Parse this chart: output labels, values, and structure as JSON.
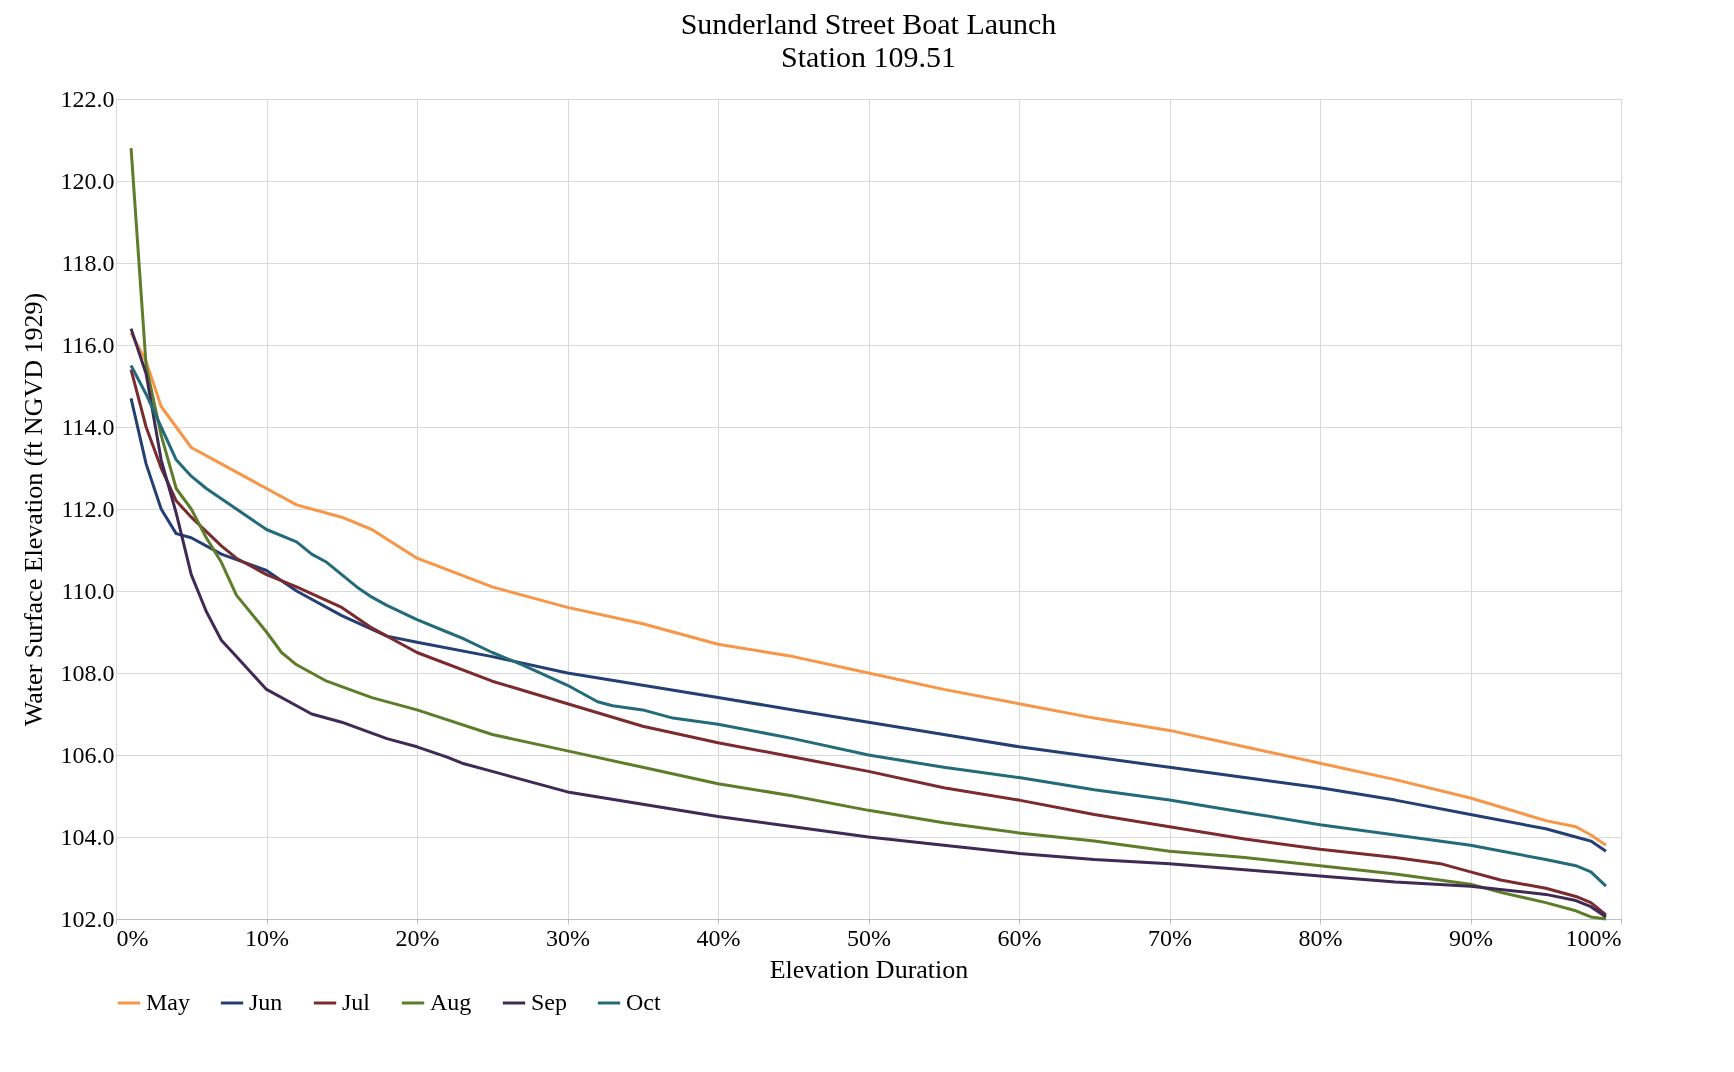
{
  "chart_data": {
    "type": "line",
    "title": "Sunderland Street Boat Launch",
    "subtitle": "Station 109.51",
    "xlabel": "Elevation Duration",
    "ylabel": "Water Surface Elevation (ft NGVD 1929)",
    "xlim": [
      0,
      100
    ],
    "xticks": [
      {
        "value": 0,
        "label": "0%"
      },
      {
        "value": 10,
        "label": "10%"
      },
      {
        "value": 20,
        "label": "20%"
      },
      {
        "value": 30,
        "label": "30%"
      },
      {
        "value": 40,
        "label": "40%"
      },
      {
        "value": 50,
        "label": "50%"
      },
      {
        "value": 60,
        "label": "60%"
      },
      {
        "value": 70,
        "label": "70%"
      },
      {
        "value": 80,
        "label": "80%"
      },
      {
        "value": 90,
        "label": "90%"
      },
      {
        "value": 100,
        "label": "100%"
      }
    ],
    "ylim": [
      102,
      122
    ],
    "yticks": [
      {
        "value": 102,
        "label": "102.0"
      },
      {
        "value": 104,
        "label": "104.0"
      },
      {
        "value": 106,
        "label": "106.0"
      },
      {
        "value": 108,
        "label": "108.0"
      },
      {
        "value": 110,
        "label": "110.0"
      },
      {
        "value": 112,
        "label": "112.0"
      },
      {
        "value": 114,
        "label": "114.0"
      },
      {
        "value": 116,
        "label": "116.0"
      },
      {
        "value": 118,
        "label": "118.0"
      },
      {
        "value": 120,
        "label": "120.0"
      },
      {
        "value": 122,
        "label": "122.0"
      }
    ],
    "grid": true,
    "legend": "bottom",
    "line_style": "solid",
    "marker": "none",
    "series": [
      {
        "name": "May",
        "color": "#f79646",
        "x": [
          1,
          2,
          3,
          4,
          5,
          7,
          10,
          12,
          15,
          17,
          20,
          25,
          30,
          35,
          40,
          45,
          50,
          55,
          60,
          65,
          70,
          75,
          80,
          85,
          90,
          95,
          97,
          98,
          99
        ],
        "values": [
          116.3,
          115.6,
          114.5,
          114.0,
          113.5,
          113.1,
          112.5,
          112.1,
          111.8,
          111.5,
          110.8,
          110.1,
          109.6,
          109.2,
          108.7,
          108.4,
          108.0,
          107.6,
          107.25,
          106.9,
          106.6,
          106.2,
          105.8,
          105.4,
          104.95,
          104.4,
          104.25,
          104.05,
          103.8
        ]
      },
      {
        "name": "Jun",
        "color": "#243f73",
        "x": [
          1,
          2,
          3,
          4,
          5,
          7,
          10,
          12,
          13,
          15,
          18,
          20,
          25,
          30,
          35,
          40,
          45,
          50,
          55,
          60,
          65,
          70,
          75,
          80,
          85,
          90,
          95,
          97,
          98,
          99
        ],
        "values": [
          114.7,
          113.1,
          112.0,
          111.4,
          111.3,
          110.9,
          110.5,
          110.0,
          109.8,
          109.4,
          108.9,
          108.75,
          108.4,
          108.0,
          107.7,
          107.4,
          107.1,
          106.8,
          106.5,
          106.2,
          105.95,
          105.7,
          105.45,
          105.2,
          104.9,
          104.55,
          104.2,
          104.0,
          103.9,
          103.65
        ]
      },
      {
        "name": "Jul",
        "color": "#7b2a2e",
        "x": [
          1,
          2,
          3,
          4,
          5,
          7,
          8,
          10,
          12,
          15,
          17,
          20,
          25,
          30,
          35,
          40,
          45,
          50,
          55,
          60,
          65,
          70,
          75,
          80,
          85,
          88,
          90,
          92,
          95,
          97,
          98,
          99
        ],
        "values": [
          115.4,
          114.0,
          113.0,
          112.2,
          111.8,
          111.1,
          110.8,
          110.4,
          110.1,
          109.6,
          109.1,
          108.5,
          107.8,
          107.25,
          106.7,
          106.3,
          105.95,
          105.6,
          105.2,
          104.9,
          104.55,
          104.25,
          103.95,
          103.7,
          103.5,
          103.35,
          103.15,
          102.95,
          102.75,
          102.55,
          102.4,
          102.1
        ]
      },
      {
        "name": "Aug",
        "color": "#5e7d2a",
        "x": [
          1,
          2,
          3,
          4,
          5,
          6,
          7,
          8,
          10,
          11,
          12,
          14,
          17,
          20,
          25,
          30,
          35,
          40,
          45,
          50,
          55,
          60,
          65,
          70,
          75,
          80,
          85,
          90,
          92,
          95,
          97,
          98,
          99
        ],
        "values": [
          120.8,
          115.5,
          113.8,
          112.5,
          112.0,
          111.3,
          110.7,
          109.9,
          109.0,
          108.5,
          108.2,
          107.8,
          107.4,
          107.1,
          106.5,
          106.1,
          105.7,
          105.3,
          105.0,
          104.65,
          104.35,
          104.1,
          103.9,
          103.65,
          103.5,
          103.3,
          103.1,
          102.85,
          102.65,
          102.4,
          102.2,
          102.05,
          102.0
        ]
      },
      {
        "name": "Sep",
        "color": "#3f2a56",
        "x": [
          1,
          2,
          3,
          4,
          5,
          6,
          7,
          8,
          9,
          10,
          12,
          13,
          15,
          18,
          20,
          22,
          23,
          25,
          30,
          35,
          40,
          45,
          50,
          55,
          60,
          65,
          70,
          75,
          80,
          85,
          90,
          95,
          97,
          98,
          99
        ],
        "values": [
          116.4,
          115.3,
          113.2,
          111.9,
          110.4,
          109.5,
          108.8,
          108.4,
          108.0,
          107.6,
          107.2,
          107.0,
          106.8,
          106.4,
          106.2,
          105.95,
          105.8,
          105.6,
          105.1,
          104.8,
          104.5,
          104.25,
          104.0,
          103.8,
          103.6,
          103.45,
          103.35,
          103.2,
          103.05,
          102.9,
          102.8,
          102.6,
          102.45,
          102.3,
          102.05
        ]
      },
      {
        "name": "Oct",
        "color": "#236a7a",
        "x": [
          1,
          2,
          3,
          4,
          5,
          6,
          8,
          10,
          12,
          13,
          14,
          16,
          17,
          18,
          20,
          22,
          23,
          25,
          27,
          30,
          32,
          33,
          35,
          37,
          40,
          45,
          50,
          55,
          60,
          65,
          70,
          75,
          80,
          85,
          90,
          95,
          97,
          98,
          99
        ],
        "values": [
          115.5,
          114.8,
          114.0,
          113.2,
          112.8,
          112.5,
          112.0,
          111.5,
          111.2,
          110.9,
          110.7,
          110.1,
          109.85,
          109.65,
          109.3,
          109.0,
          108.85,
          108.5,
          108.2,
          107.7,
          107.3,
          107.2,
          107.1,
          106.9,
          106.75,
          106.4,
          106.0,
          105.7,
          105.45,
          105.15,
          104.9,
          104.6,
          104.3,
          104.05,
          103.8,
          103.45,
          103.3,
          103.15,
          102.8
        ]
      }
    ]
  }
}
